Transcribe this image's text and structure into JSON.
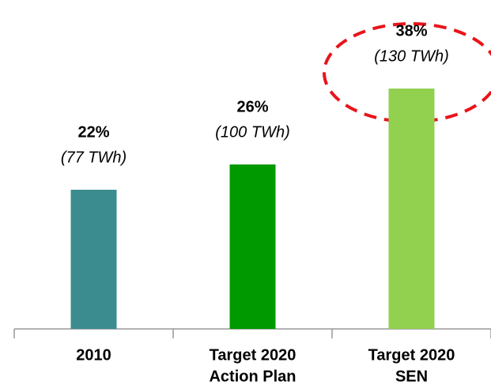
{
  "chart_data": {
    "type": "bar",
    "categories": [
      [
        "2010"
      ],
      [
        "Target 2020",
        "Action Plan"
      ],
      [
        "Target 2020",
        "SEN"
      ]
    ],
    "values": [
      22,
      26,
      38
    ],
    "value_labels": [
      "22%",
      "26%",
      "38%"
    ],
    "annotations": [
      "(77 TWh)",
      "(100 TWh)",
      "(130 TWh)"
    ],
    "colors": [
      "#3b8c8e",
      "#009a00",
      "#92d050"
    ]
  }
}
